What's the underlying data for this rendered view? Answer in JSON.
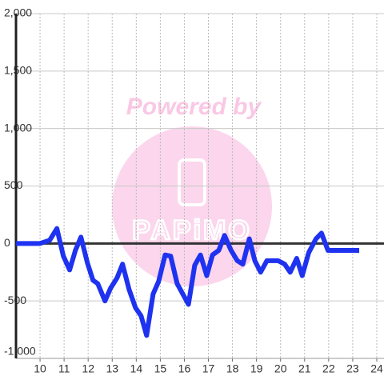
{
  "chart_data": {
    "type": "line",
    "watermark": {
      "top": "Powered by",
      "brand": "PAPiMO"
    },
    "x": [
      9.0,
      10.0,
      10.4,
      10.7,
      10.97,
      11.23,
      11.47,
      11.7,
      11.97,
      12.2,
      12.4,
      12.7,
      12.93,
      13.2,
      13.43,
      13.7,
      13.97,
      14.2,
      14.43,
      14.7,
      14.93,
      15.2,
      15.43,
      15.7,
      16.17,
      16.43,
      16.67,
      16.93,
      17.17,
      17.43,
      17.67,
      17.93,
      18.2,
      18.43,
      18.7,
      18.93,
      19.17,
      19.43,
      19.9,
      20.17,
      20.4,
      20.67,
      20.9,
      21.17,
      21.47,
      21.7,
      21.97,
      23.27
    ],
    "series": [
      {
        "color": "#1e32f0",
        "values": [
          0,
          0,
          28,
          130,
          -110,
          -230,
          -60,
          55,
          -170,
          -320,
          -350,
          -500,
          -390,
          -300,
          -180,
          -400,
          -560,
          -630,
          -800,
          -440,
          -330,
          -100,
          -110,
          -350,
          -530,
          -190,
          -100,
          -280,
          -100,
          -60,
          70,
          -55,
          -150,
          -180,
          40,
          -150,
          -250,
          -150,
          -150,
          -180,
          -250,
          -130,
          -280,
          -80,
          40,
          90,
          -60,
          -60
        ]
      }
    ],
    "xlim": [
      9,
      24.3
    ],
    "xticks": [
      10,
      11,
      12,
      13,
      14,
      15,
      16,
      17,
      18,
      19,
      20,
      21,
      22,
      23,
      24
    ],
    "ylim": [
      -1000,
      2000
    ],
    "yticks": [
      {
        "value": -1000,
        "label": "-1,000"
      },
      -500,
      0,
      500,
      {
        "value": 1000,
        "label": "1,000"
      },
      {
        "value": 1500,
        "label": "1,500"
      },
      {
        "value": 2000,
        "label": "2,000"
      }
    ],
    "grid": true
  }
}
